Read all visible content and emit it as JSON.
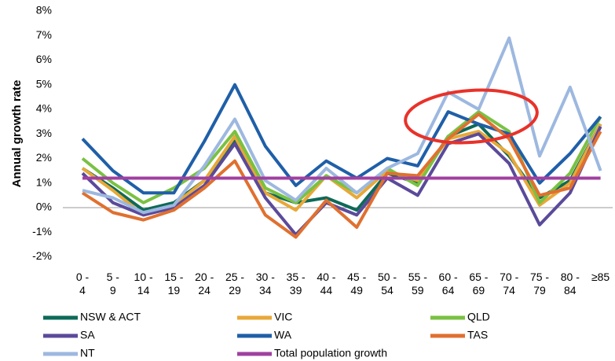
{
  "chart_data": {
    "type": "line",
    "y_label": "Annual growth rate",
    "categories": [
      "0 - 4",
      "5 - 9",
      "10 - 14",
      "15 - 19",
      "20 - 24",
      "25 - 29",
      "30 - 34",
      "35 - 39",
      "40 - 44",
      "45 - 49",
      "50 - 54",
      "55 - 59",
      "60 - 64",
      "65 - 69",
      "70 - 74",
      "75 - 79",
      "80 - 84",
      "≥85"
    ],
    "ylim": [
      -2,
      8
    ],
    "yticks": [
      {
        "value": -2,
        "label": "-2%"
      },
      {
        "value": -1,
        "label": "-1%"
      },
      {
        "value": 0,
        "label": "0%"
      },
      {
        "value": 1,
        "label": "1%"
      },
      {
        "value": 2,
        "label": "2%"
      },
      {
        "value": 3,
        "label": "3%"
      },
      {
        "value": 4,
        "label": "4%"
      },
      {
        "value": 5,
        "label": "5%"
      },
      {
        "value": 6,
        "label": "6%"
      },
      {
        "value": 7,
        "label": "7%"
      },
      {
        "value": 8,
        "label": "8%"
      }
    ],
    "grid": false,
    "series": [
      {
        "name": "NSW & ACT",
        "color": "#0e6a58",
        "values": [
          1.6,
          0.8,
          -0.1,
          0.2,
          1.1,
          2.7,
          0.6,
          0.2,
          0.4,
          -0.1,
          1.4,
          1.0,
          2.9,
          3.4,
          2.1,
          0.4,
          1.1,
          3.4
        ]
      },
      {
        "name": "VIC",
        "color": "#e8a838",
        "values": [
          1.6,
          0.7,
          -0.3,
          0.1,
          1.1,
          2.9,
          0.6,
          -0.1,
          1.3,
          0.4,
          1.5,
          1.1,
          2.8,
          3.1,
          2.2,
          0.1,
          1.0,
          3.4
        ]
      },
      {
        "name": "QLD",
        "color": "#7ac143",
        "values": [
          2.0,
          1.0,
          0.2,
          0.8,
          1.6,
          3.1,
          0.8,
          0.2,
          1.3,
          0.6,
          1.6,
          0.9,
          2.9,
          3.9,
          3.1,
          0.2,
          1.4,
          3.7
        ]
      },
      {
        "name": "SA",
        "color": "#5b4a9a",
        "values": [
          1.4,
          0.2,
          -0.3,
          0.0,
          0.9,
          2.6,
          0.4,
          -1.1,
          0.2,
          -0.3,
          1.2,
          0.5,
          2.6,
          3.0,
          1.8,
          -0.7,
          0.6,
          3.3
        ]
      },
      {
        "name": "WA",
        "color": "#1f5fa8",
        "values": [
          2.8,
          1.5,
          0.6,
          0.6,
          2.7,
          5.0,
          2.5,
          0.9,
          1.9,
          1.2,
          2.0,
          1.7,
          3.9,
          3.4,
          3.0,
          1.0,
          2.2,
          3.7
        ]
      },
      {
        "name": "TAS",
        "color": "#e07030",
        "values": [
          0.6,
          -0.2,
          -0.5,
          -0.1,
          0.8,
          1.9,
          -0.3,
          -1.2,
          0.3,
          -0.8,
          1.4,
          1.3,
          2.8,
          3.8,
          2.8,
          0.5,
          0.8,
          3.1
        ]
      },
      {
        "name": "NT",
        "color": "#9db8e0",
        "values": [
          0.7,
          0.4,
          -0.2,
          0.1,
          1.7,
          3.6,
          1.1,
          0.3,
          1.6,
          0.6,
          1.6,
          2.2,
          4.7,
          4.0,
          6.9,
          2.1,
          4.9,
          1.5
        ]
      },
      {
        "name": "Total population growth",
        "color": "#a040a0",
        "values": [
          1.2,
          1.2,
          1.2,
          1.2,
          1.2,
          1.2,
          1.2,
          1.2,
          1.2,
          1.2,
          1.2,
          1.2,
          1.2,
          1.2,
          1.2,
          1.2,
          1.2,
          1.2
        ]
      }
    ]
  }
}
